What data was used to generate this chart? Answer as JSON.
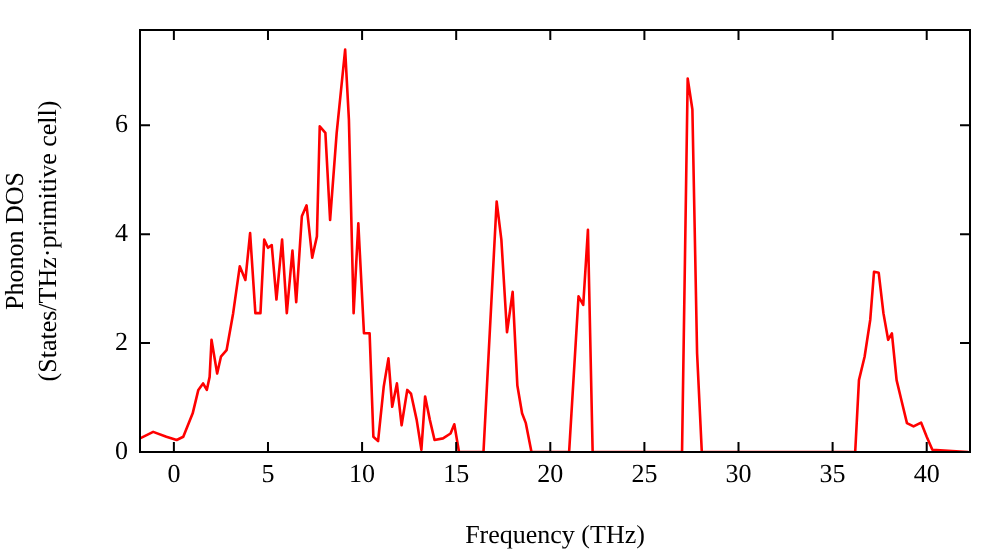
{
  "chart_data": {
    "type": "line",
    "xlabel": "Frequency (THz)",
    "ylabel": "Phonon DOS\n(States/THz·primitive cell)",
    "xlim": [
      -1.8,
      42.3
    ],
    "xticks": [
      0,
      5,
      10,
      15,
      20,
      25,
      30,
      35,
      40
    ],
    "ylim": [
      0,
      7.75
    ],
    "yticks": [
      0,
      2,
      4,
      6
    ],
    "grid": false,
    "legend": false,
    "marker": "none",
    "line_style": "solid",
    "series": [
      {
        "color": "#ff0000",
        "x": [
          -1.8,
          -1.1,
          -0.4,
          0.15,
          0.5,
          1.0,
          1.3,
          1.55,
          1.75,
          1.9,
          2.0,
          2.3,
          2.5,
          2.8,
          3.15,
          3.5,
          3.8,
          4.05,
          4.33,
          4.6,
          4.8,
          5.0,
          5.2,
          5.45,
          5.75,
          6.0,
          6.3,
          6.5,
          6.8,
          7.05,
          7.35,
          7.6,
          7.75,
          8.05,
          8.3,
          8.65,
          9.1,
          9.3,
          9.55,
          9.8,
          10.1,
          10.4,
          10.6,
          10.85,
          11.15,
          11.4,
          11.6,
          11.85,
          12.1,
          12.4,
          12.6,
          12.9,
          13.15,
          13.35,
          13.6,
          13.85,
          14.3,
          14.7,
          14.9,
          15.15,
          16.45,
          17.15,
          17.4,
          17.7,
          18.0,
          18.25,
          18.5,
          18.7,
          19.0,
          21.0,
          21.5,
          21.75,
          22.0,
          22.25,
          27.0,
          27.3,
          27.55,
          27.8,
          28.05,
          36.2,
          36.4,
          36.7,
          37.0,
          37.2,
          37.45,
          37.7,
          37.95,
          38.15,
          38.4,
          38.65,
          38.95,
          39.3,
          39.7,
          40.0,
          40.3,
          42.2
        ],
        "values": [
          0.25,
          0.37,
          0.28,
          0.22,
          0.28,
          0.71,
          1.14,
          1.26,
          1.14,
          1.38,
          2.06,
          1.44,
          1.75,
          1.87,
          2.55,
          3.41,
          3.16,
          4.02,
          2.55,
          2.55,
          3.9,
          3.75,
          3.8,
          2.8,
          3.9,
          2.55,
          3.7,
          2.75,
          4.33,
          4.53,
          3.57,
          3.96,
          5.98,
          5.86,
          4.26,
          5.86,
          7.39,
          6.1,
          2.55,
          4.2,
          2.18,
          2.18,
          0.28,
          0.2,
          1.2,
          1.72,
          0.83,
          1.26,
          0.49,
          1.14,
          1.07,
          0.59,
          0.04,
          1.02,
          0.59,
          0.22,
          0.25,
          0.34,
          0.51,
          0,
          0,
          4.6,
          3.9,
          2.2,
          2.94,
          1.22,
          0.71,
          0.53,
          0,
          0,
          2.86,
          2.7,
          4.08,
          0,
          0,
          6.86,
          6.29,
          1.81,
          0,
          0,
          1.32,
          1.75,
          2.43,
          3.31,
          3.29,
          2.55,
          2.06,
          2.18,
          1.32,
          0.96,
          0.53,
          0.47,
          0.54,
          0.28,
          0.04,
          0
        ]
      }
    ]
  }
}
